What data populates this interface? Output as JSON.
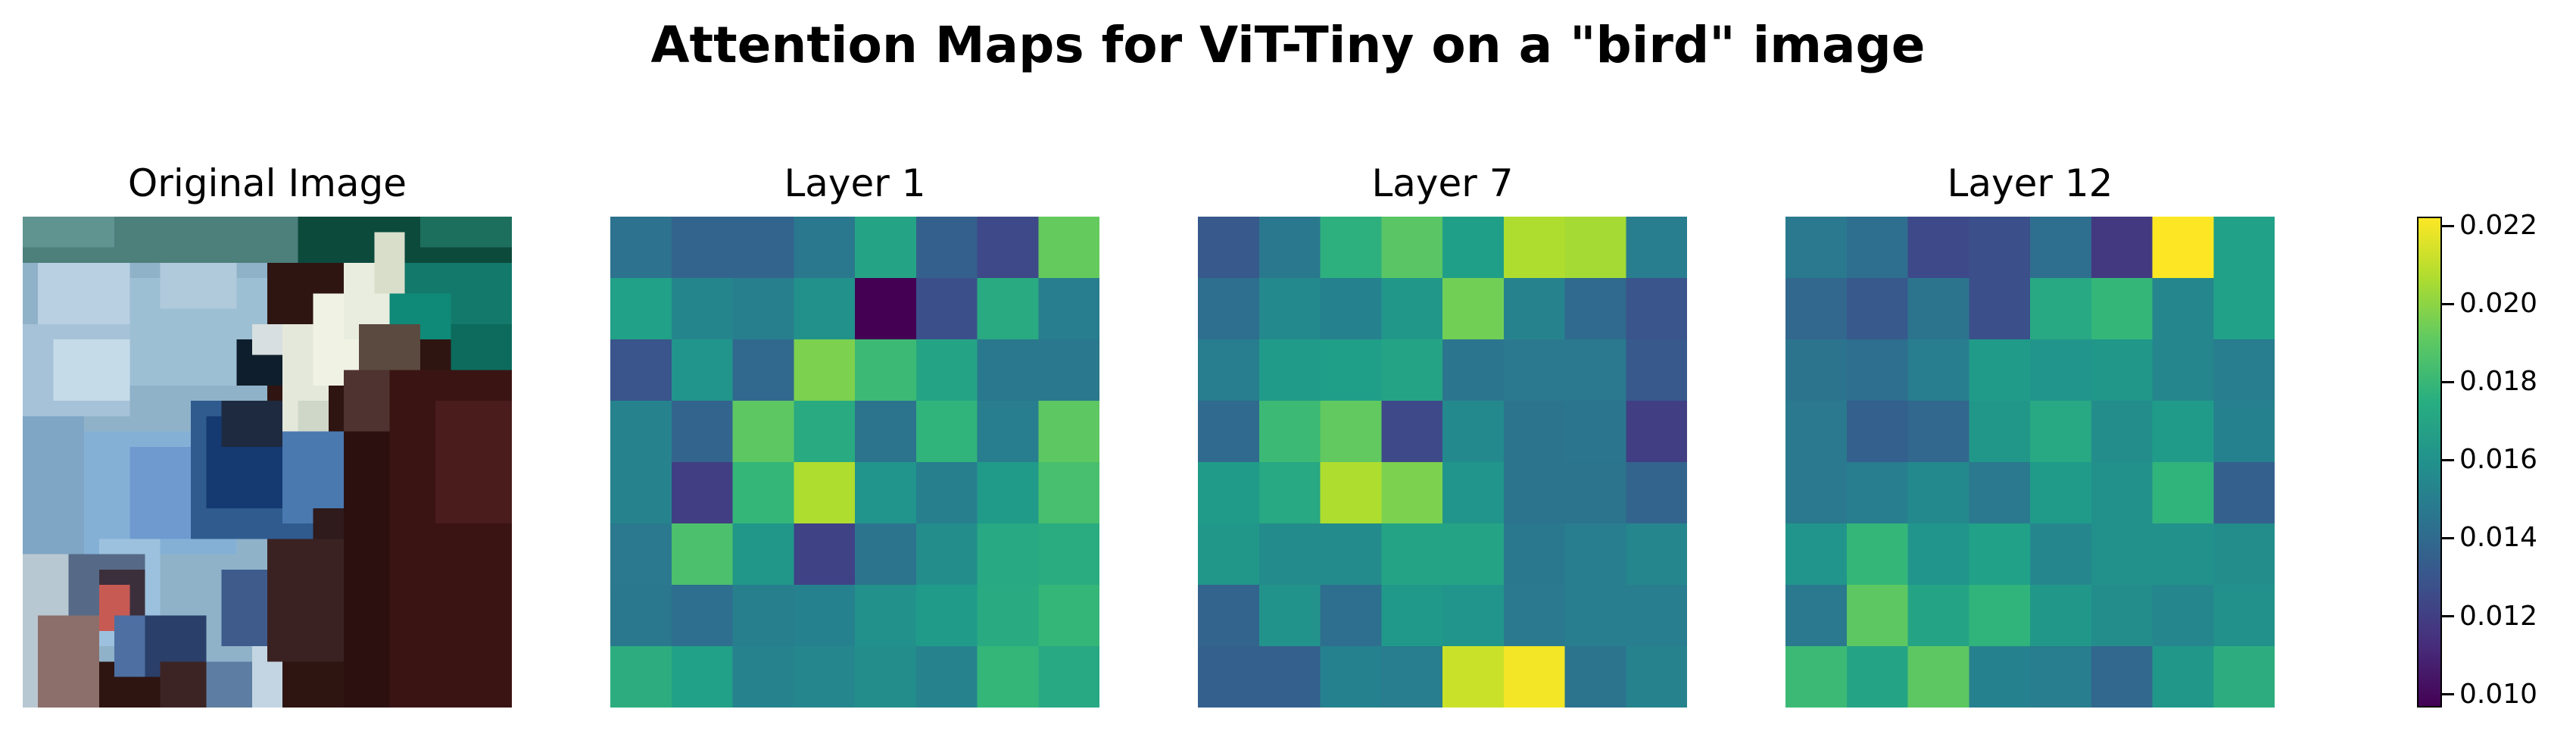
{
  "title": "Attention Maps for ViT-Tiny on a \"bird\" image",
  "panels": {
    "original": {
      "label": "Original Image"
    },
    "layer1": {
      "label": "Layer 1"
    },
    "layer7": {
      "label": "Layer 7"
    },
    "layer12": {
      "label": "Layer 12"
    }
  },
  "chart_data": {
    "type": "heatmap",
    "title": "Attention Maps for ViT-Tiny on a \"bird\" image",
    "colormap": "viridis",
    "vmin": 0.0097,
    "vmax": 0.0222,
    "colorbar_ticks": [
      "0.010",
      "0.012",
      "0.014",
      "0.016",
      "0.018",
      "0.020",
      "0.022"
    ],
    "grid": false,
    "maps": [
      {
        "name": "Layer 1",
        "rows": 8,
        "cols": 8,
        "values": [
          [
            0.0144,
            0.0137,
            0.0137,
            0.0147,
            0.017,
            0.0135,
            0.0125,
            0.0192
          ],
          [
            0.0168,
            0.0154,
            0.0151,
            0.016,
            0.0097,
            0.0128,
            0.0173,
            0.015
          ],
          [
            0.013,
            0.0162,
            0.0139,
            0.0197,
            0.0182,
            0.017,
            0.0147,
            0.0147
          ],
          [
            0.0153,
            0.0137,
            0.019,
            0.0173,
            0.0145,
            0.0178,
            0.015,
            0.019
          ],
          [
            0.0153,
            0.012,
            0.018,
            0.0207,
            0.0162,
            0.0151,
            0.0165,
            0.0185
          ],
          [
            0.0148,
            0.0186,
            0.0163,
            0.0122,
            0.0145,
            0.0158,
            0.0172,
            0.0174
          ],
          [
            0.0147,
            0.0142,
            0.0151,
            0.0152,
            0.016,
            0.0165,
            0.0173,
            0.018
          ],
          [
            0.0175,
            0.0168,
            0.0153,
            0.0155,
            0.0158,
            0.0153,
            0.018,
            0.0172
          ]
        ]
      },
      {
        "name": "Layer 7",
        "rows": 8,
        "cols": 8,
        "values": [
          [
            0.0132,
            0.0147,
            0.0176,
            0.0189,
            0.0167,
            0.0207,
            0.0205,
            0.015
          ],
          [
            0.0142,
            0.0156,
            0.0152,
            0.0163,
            0.0195,
            0.0153,
            0.014,
            0.013
          ],
          [
            0.015,
            0.0165,
            0.0167,
            0.017,
            0.0146,
            0.0148,
            0.0148,
            0.0132
          ],
          [
            0.014,
            0.0182,
            0.0191,
            0.0125,
            0.0156,
            0.0145,
            0.0146,
            0.012
          ],
          [
            0.0165,
            0.0172,
            0.0207,
            0.0197,
            0.0162,
            0.0145,
            0.0145,
            0.0137
          ],
          [
            0.0163,
            0.0157,
            0.0157,
            0.017,
            0.017,
            0.0147,
            0.015,
            0.0155
          ],
          [
            0.0137,
            0.0161,
            0.0142,
            0.0164,
            0.0162,
            0.0148,
            0.015,
            0.015
          ],
          [
            0.0135,
            0.0135,
            0.0152,
            0.015,
            0.0212,
            0.022,
            0.0145,
            0.0153
          ]
        ]
      },
      {
        "name": "Layer 12",
        "rows": 8,
        "cols": 8,
        "values": [
          [
            0.0148,
            0.0142,
            0.0125,
            0.0128,
            0.0142,
            0.0118,
            0.0222,
            0.0168
          ],
          [
            0.0138,
            0.0132,
            0.0145,
            0.0128,
            0.0172,
            0.018,
            0.0155,
            0.0168
          ],
          [
            0.0145,
            0.0142,
            0.015,
            0.0165,
            0.0162,
            0.0163,
            0.0155,
            0.015
          ],
          [
            0.0148,
            0.0135,
            0.0138,
            0.0163,
            0.0172,
            0.0158,
            0.0165,
            0.0152
          ],
          [
            0.0148,
            0.015,
            0.0156,
            0.0148,
            0.0165,
            0.016,
            0.0178,
            0.0135
          ],
          [
            0.0162,
            0.018,
            0.0162,
            0.0168,
            0.0155,
            0.016,
            0.016,
            0.0158
          ],
          [
            0.0148,
            0.019,
            0.017,
            0.0178,
            0.0163,
            0.0158,
            0.0155,
            0.016
          ],
          [
            0.0182,
            0.017,
            0.019,
            0.0152,
            0.015,
            0.0138,
            0.0163,
            0.0175
          ]
        ]
      }
    ]
  }
}
